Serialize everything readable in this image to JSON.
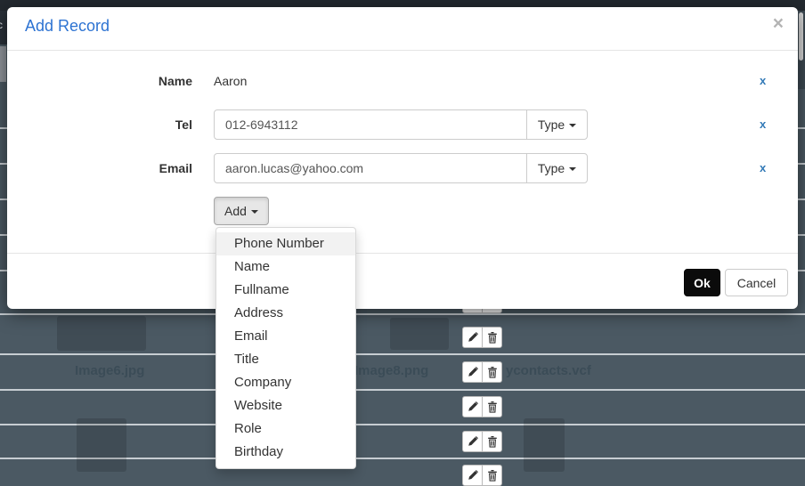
{
  "modal": {
    "title": "Add Record",
    "close": "×",
    "rows": {
      "name": {
        "label": "Name",
        "value": "Aaron",
        "remove": "x"
      },
      "tel": {
        "label": "Tel",
        "value": "012-6943112",
        "type_button": "Type",
        "remove": "x"
      },
      "email": {
        "label": "Email",
        "value": "aaron.lucas@yahoo.com",
        "type_button": "Type",
        "remove": "x"
      }
    },
    "add_button": {
      "label": "Add"
    },
    "dropdown": {
      "items": [
        "Phone Number",
        "Name",
        "Fullname",
        "Address",
        "Email",
        "Title",
        "Company",
        "Website",
        "Role",
        "Birthday"
      ],
      "highlighted": "Phone Number"
    },
    "footer": {
      "ok": "Ok",
      "cancel": "Cancel"
    }
  },
  "background": {
    "files": [
      {
        "name": "Image6.jpg"
      },
      {
        "name": "Image8.png"
      },
      {
        "name": "ycontacts.vcf"
      }
    ],
    "row_action_icons": [
      "pencil-icon",
      "trash-icon"
    ],
    "nav_text_fragment": "c"
  },
  "colors": {
    "title_blue": "#2d73d2",
    "link_blue": "#337ab7",
    "ok_button_bg": "#0b0b0b",
    "table_row_bg": "#4b5963",
    "row_separator": "#dde2e5",
    "add_button_bg": "#e7e7e7"
  }
}
